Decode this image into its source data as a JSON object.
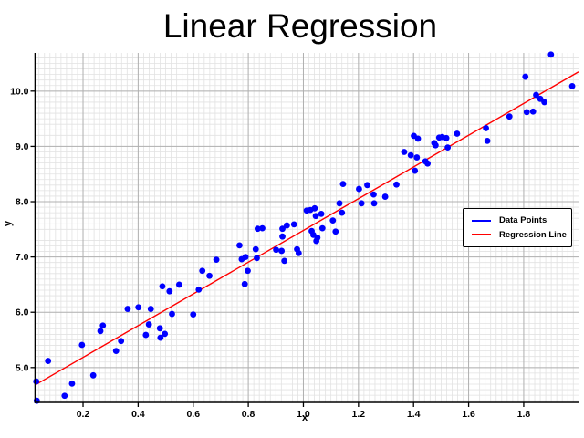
{
  "chart_data": {
    "type": "scatter",
    "title": "Linear Regression",
    "xlabel": "x",
    "ylabel": "y",
    "xlim": [
      0.026,
      1.999
    ],
    "ylim": [
      4.37,
      10.69
    ],
    "x_ticks": [
      0.2,
      0.4,
      0.6,
      0.8,
      1.0,
      1.2,
      1.4,
      1.6,
      1.8
    ],
    "x_tick_labels": [
      "0.2",
      "0.4",
      "0.6",
      "0.8",
      "1.0",
      "1.2",
      "1.4",
      "1.6",
      "1.8"
    ],
    "y_ticks": [
      5.0,
      6.0,
      7.0,
      8.0,
      9.0,
      10.0
    ],
    "y_tick_labels": [
      "5.0",
      "6.0",
      "7.0",
      "8.0",
      "9.0",
      "10.0"
    ],
    "x_minor_step": 0.02,
    "y_minor_step": 0.1,
    "grid": true,
    "grid_colors": {
      "minor": "#e2e2e2",
      "major": "#b0b0b0"
    },
    "axis_color": "#000000",
    "legend_position": "center-right",
    "series": [
      {
        "name": "Data Points",
        "type": "scatter",
        "color": "#0000ff",
        "marker": "circle",
        "points": [
          [
            0.03,
            4.75
          ],
          [
            0.032,
            4.4
          ],
          [
            0.073,
            5.12
          ],
          [
            0.133,
            4.49
          ],
          [
            0.16,
            4.71
          ],
          [
            0.196,
            5.41
          ],
          [
            0.237,
            4.86
          ],
          [
            0.263,
            5.66
          ],
          [
            0.272,
            5.76
          ],
          [
            0.32,
            5.3
          ],
          [
            0.338,
            5.48
          ],
          [
            0.362,
            6.06
          ],
          [
            0.401,
            6.09
          ],
          [
            0.428,
            5.59
          ],
          [
            0.439,
            5.78
          ],
          [
            0.446,
            6.06
          ],
          [
            0.479,
            5.71
          ],
          [
            0.481,
            5.54
          ],
          [
            0.488,
            6.47
          ],
          [
            0.497,
            5.61
          ],
          [
            0.514,
            6.38
          ],
          [
            0.523,
            5.97
          ],
          [
            0.549,
            6.5
          ],
          [
            0.6,
            5.96
          ],
          [
            0.62,
            6.41
          ],
          [
            0.633,
            6.75
          ],
          [
            0.659,
            6.66
          ],
          [
            0.684,
            6.95
          ],
          [
            0.768,
            7.21
          ],
          [
            0.776,
            6.96
          ],
          [
            0.79,
            7.0
          ],
          [
            0.798,
            6.75
          ],
          [
            0.787,
            6.51
          ],
          [
            0.827,
            7.14
          ],
          [
            0.831,
            6.98
          ],
          [
            0.834,
            7.51
          ],
          [
            0.851,
            7.52
          ],
          [
            0.901,
            7.13
          ],
          [
            0.921,
            7.11
          ],
          [
            0.931,
            6.93
          ],
          [
            0.924,
            7.51
          ],
          [
            0.924,
            7.37
          ],
          [
            0.94,
            7.57
          ],
          [
            0.966,
            7.59
          ],
          [
            0.977,
            7.14
          ],
          [
            0.983,
            7.07
          ],
          [
            1.012,
            7.84
          ],
          [
            1.025,
            7.85
          ],
          [
            1.041,
            7.88
          ],
          [
            1.03,
            7.47
          ],
          [
            1.036,
            7.4
          ],
          [
            1.047,
            7.29
          ],
          [
            1.051,
            7.35
          ],
          [
            1.045,
            7.74
          ],
          [
            1.065,
            7.78
          ],
          [
            1.069,
            7.52
          ],
          [
            1.107,
            7.66
          ],
          [
            1.117,
            7.46
          ],
          [
            1.131,
            7.97
          ],
          [
            1.14,
            7.8
          ],
          [
            1.144,
            8.32
          ],
          [
            1.202,
            8.23
          ],
          [
            1.211,
            7.97
          ],
          [
            1.232,
            8.3
          ],
          [
            1.255,
            8.13
          ],
          [
            1.257,
            7.97
          ],
          [
            1.297,
            8.09
          ],
          [
            1.338,
            8.31
          ],
          [
            1.366,
            8.9
          ],
          [
            1.39,
            8.84
          ],
          [
            1.401,
            9.19
          ],
          [
            1.416,
            9.14
          ],
          [
            1.412,
            8.8
          ],
          [
            1.405,
            8.56
          ],
          [
            1.443,
            8.73
          ],
          [
            1.451,
            8.69
          ],
          [
            1.475,
            9.06
          ],
          [
            1.48,
            9.02
          ],
          [
            1.493,
            9.16
          ],
          [
            1.504,
            9.17
          ],
          [
            1.519,
            9.15
          ],
          [
            1.524,
            8.98
          ],
          [
            1.558,
            9.23
          ],
          [
            1.663,
            9.33
          ],
          [
            1.668,
            9.1
          ],
          [
            1.748,
            9.54
          ],
          [
            1.811,
            9.62
          ],
          [
            1.834,
            9.63
          ],
          [
            1.806,
            10.26
          ],
          [
            1.845,
            9.93
          ],
          [
            1.86,
            9.86
          ],
          [
            1.875,
            9.8
          ],
          [
            1.899,
            10.66
          ],
          [
            1.976,
            10.09
          ]
        ]
      },
      {
        "name": "Regression Line",
        "type": "line",
        "color": "#ff0000",
        "slope": 2.87,
        "intercept": 4.61
      }
    ]
  }
}
